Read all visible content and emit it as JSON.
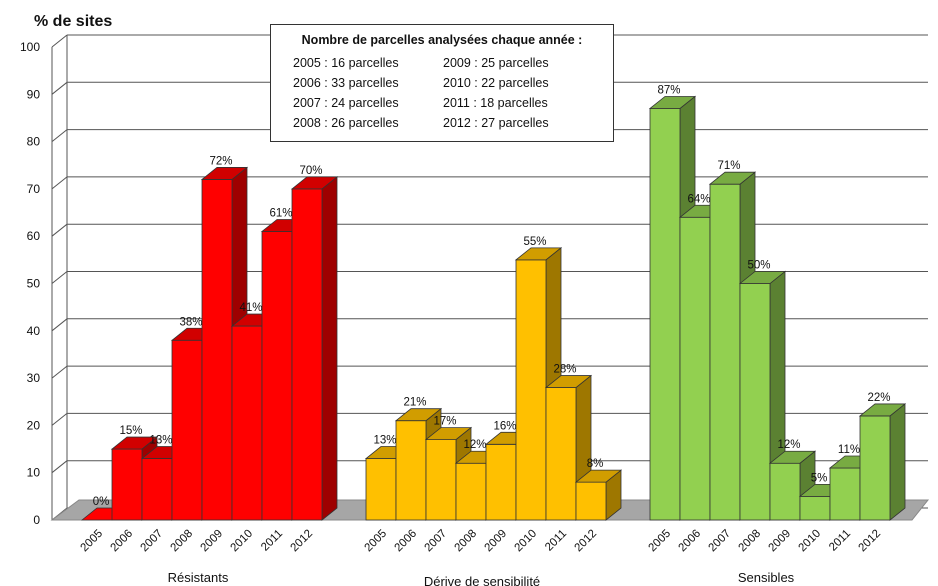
{
  "chart_data": {
    "type": "bar",
    "ylabel": "% de sites",
    "ylim": [
      0,
      100
    ],
    "yticks": [
      0,
      10,
      20,
      30,
      40,
      50,
      60,
      70,
      80,
      90,
      100
    ],
    "grid": true,
    "categories": [
      "2005",
      "2006",
      "2007",
      "2008",
      "2009",
      "2010",
      "2011",
      "2012"
    ],
    "groups": [
      {
        "name": "Résistants",
        "color": "#ff0000",
        "values": [
          0,
          15,
          13,
          38,
          72,
          41,
          61,
          70
        ]
      },
      {
        "name": "Dérive de sensibilité",
        "color": "#ffc000",
        "values": [
          13,
          21,
          17,
          12,
          16,
          55,
          28,
          8
        ]
      },
      {
        "name": "Sensibles",
        "color": "#92d050",
        "values": [
          87,
          64,
          71,
          50,
          12,
          5,
          11,
          22
        ]
      }
    ],
    "value_suffix": "%",
    "annotation": {
      "title": "Nombre de parcelles analysées chaque année :",
      "entries": [
        "2005 : 16 parcelles",
        "2009 : 25 parcelles",
        "2006 : 33 parcelles",
        "2010 : 22 parcelles",
        "2007 : 24 parcelles",
        "2011 : 18 parcelles",
        "2008 : 26 parcelles",
        "2012 : 27 parcelles"
      ]
    }
  }
}
